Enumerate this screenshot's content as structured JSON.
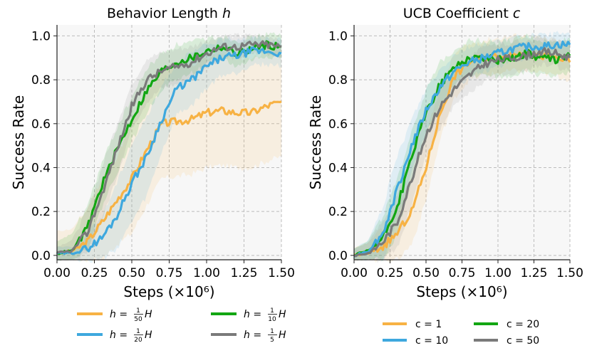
{
  "colors": {
    "orange": "#f7b244",
    "blue": "#3ea8de",
    "green": "#12a612",
    "gray": "#7a7a7a",
    "grid": "#bdbdbd",
    "bg": "#f7f7f7"
  },
  "chart_data": [
    {
      "type": "line",
      "title": "Behavior Length h",
      "title_main": "Behavior Length ",
      "title_var": "h",
      "xlabel": "Steps (×10⁶)",
      "ylabel": "Success Rate",
      "xlim": [
        0,
        1.5
      ],
      "ylim": [
        -0.02,
        1.05
      ],
      "xticks": [
        0.0,
        0.25,
        0.5,
        0.75,
        1.0,
        1.25,
        1.5
      ],
      "xtick_labels": [
        "0.00",
        "0.25",
        "0.50",
        "0.75",
        "1.00",
        "1.25",
        "1.50"
      ],
      "yticks": [
        0.0,
        0.2,
        0.4,
        0.6,
        0.8,
        1.0
      ],
      "ytick_labels": [
        "0.0",
        "0.2",
        "0.4",
        "0.6",
        "0.8",
        "1.0"
      ],
      "x": [
        0,
        0.1,
        0.2,
        0.3,
        0.4,
        0.5,
        0.6,
        0.7,
        0.8,
        0.9,
        1.0,
        1.1,
        1.2,
        1.3,
        1.4,
        1.5
      ],
      "series": [
        {
          "name": "h = 1/50 H",
          "legend_lhs": "h = ",
          "legend_num": "1",
          "legend_den": "50",
          "legend_rhs": "H",
          "color": "orange",
          "values": [
            0.01,
            0.02,
            0.06,
            0.15,
            0.25,
            0.35,
            0.48,
            0.6,
            0.61,
            0.62,
            0.65,
            0.66,
            0.65,
            0.65,
            0.68,
            0.7
          ],
          "band": [
            0.1,
            0.1,
            0.15,
            0.2,
            0.2,
            0.25,
            0.25,
            0.25,
            0.25,
            0.25,
            0.25,
            0.25,
            0.25,
            0.25,
            0.25,
            0.25
          ]
        },
        {
          "name": "h = 1/10 H",
          "legend_lhs": "h = ",
          "legend_num": "1",
          "legend_den": "10",
          "legend_rhs": "H",
          "color": "green",
          "values": [
            0.01,
            0.02,
            0.12,
            0.32,
            0.48,
            0.62,
            0.75,
            0.84,
            0.88,
            0.9,
            0.93,
            0.95,
            0.92,
            0.94,
            0.96,
            0.95
          ],
          "band": [
            0.05,
            0.08,
            0.1,
            0.1,
            0.1,
            0.1,
            0.1,
            0.08,
            0.08,
            0.07,
            0.06,
            0.05,
            0.06,
            0.05,
            0.05,
            0.05
          ]
        },
        {
          "name": "h = 1/20 H",
          "legend_lhs": "h = ",
          "legend_num": "1",
          "legend_den": "20",
          "legend_rhs": "H",
          "color": "blue",
          "values": [
            0.01,
            0.01,
            0.03,
            0.08,
            0.18,
            0.33,
            0.45,
            0.62,
            0.76,
            0.8,
            0.86,
            0.9,
            0.91,
            0.93,
            0.93,
            0.92
          ],
          "band": [
            0.03,
            0.03,
            0.06,
            0.1,
            0.15,
            0.18,
            0.18,
            0.15,
            0.12,
            0.12,
            0.1,
            0.08,
            0.08,
            0.06,
            0.06,
            0.06
          ]
        },
        {
          "name": "h = 1/5 H",
          "legend_lhs": "h = ",
          "legend_num": "1",
          "legend_den": "5",
          "legend_rhs": "H",
          "color": "gray",
          "values": [
            0.01,
            0.02,
            0.1,
            0.28,
            0.48,
            0.68,
            0.8,
            0.84,
            0.86,
            0.88,
            0.92,
            0.95,
            0.95,
            0.96,
            0.96,
            0.95
          ],
          "band": [
            0.03,
            0.05,
            0.1,
            0.12,
            0.12,
            0.1,
            0.1,
            0.08,
            0.08,
            0.07,
            0.06,
            0.05,
            0.05,
            0.04,
            0.04,
            0.04
          ]
        }
      ]
    },
    {
      "type": "line",
      "title": "UCB Coefficient c",
      "title_main": "UCB Coefficient ",
      "title_var": "c",
      "xlabel": "Steps (×10⁶)",
      "ylabel": "Success Rate",
      "xlim": [
        0,
        1.5
      ],
      "ylim": [
        -0.02,
        1.05
      ],
      "xticks": [
        0.0,
        0.25,
        0.5,
        0.75,
        1.0,
        1.25,
        1.5
      ],
      "xtick_labels": [
        "0.00",
        "0.25",
        "0.50",
        "0.75",
        "1.00",
        "1.25",
        "1.50"
      ],
      "yticks": [
        0.0,
        0.2,
        0.4,
        0.6,
        0.8,
        1.0
      ],
      "ytick_labels": [
        "0.0",
        "0.2",
        "0.4",
        "0.6",
        "0.8",
        "1.0"
      ],
      "x": [
        0,
        0.1,
        0.2,
        0.3,
        0.4,
        0.5,
        0.6,
        0.7,
        0.8,
        0.9,
        1.0,
        1.1,
        1.2,
        1.3,
        1.4,
        1.5
      ],
      "series": [
        {
          "name": "c = 1",
          "legend_text": "c = 1",
          "color": "orange",
          "values": [
            0.0,
            0.01,
            0.04,
            0.1,
            0.2,
            0.4,
            0.65,
            0.82,
            0.88,
            0.9,
            0.91,
            0.92,
            0.92,
            0.91,
            0.9,
            0.88
          ],
          "band": [
            0.03,
            0.05,
            0.08,
            0.12,
            0.15,
            0.15,
            0.12,
            0.1,
            0.08,
            0.08,
            0.08,
            0.08,
            0.08,
            0.08,
            0.08,
            0.08
          ]
        },
        {
          "name": "c = 20",
          "legend_text": "c = 20",
          "color": "green",
          "values": [
            0.0,
            0.02,
            0.08,
            0.22,
            0.45,
            0.65,
            0.78,
            0.86,
            0.9,
            0.9,
            0.89,
            0.9,
            0.92,
            0.9,
            0.89,
            0.91
          ],
          "band": [
            0.03,
            0.05,
            0.1,
            0.12,
            0.12,
            0.1,
            0.1,
            0.08,
            0.08,
            0.08,
            0.08,
            0.08,
            0.08,
            0.08,
            0.08,
            0.08
          ]
        },
        {
          "name": "c = 10",
          "legend_text": "c = 10",
          "color": "blue",
          "values": [
            0.0,
            0.02,
            0.1,
            0.3,
            0.5,
            0.66,
            0.77,
            0.84,
            0.88,
            0.9,
            0.92,
            0.94,
            0.95,
            0.95,
            0.96,
            0.96
          ],
          "band": [
            0.03,
            0.05,
            0.12,
            0.15,
            0.12,
            0.1,
            0.08,
            0.08,
            0.07,
            0.06,
            0.06,
            0.05,
            0.05,
            0.05,
            0.05,
            0.05
          ]
        },
        {
          "name": "c = 50",
          "legend_text": "c = 50",
          "color": "gray",
          "values": [
            0.0,
            0.01,
            0.06,
            0.15,
            0.35,
            0.55,
            0.68,
            0.76,
            0.82,
            0.87,
            0.89,
            0.9,
            0.91,
            0.93,
            0.92,
            0.9
          ],
          "band": [
            0.03,
            0.05,
            0.1,
            0.12,
            0.12,
            0.1,
            0.1,
            0.08,
            0.08,
            0.08,
            0.07,
            0.07,
            0.07,
            0.06,
            0.06,
            0.06
          ]
        }
      ]
    }
  ]
}
